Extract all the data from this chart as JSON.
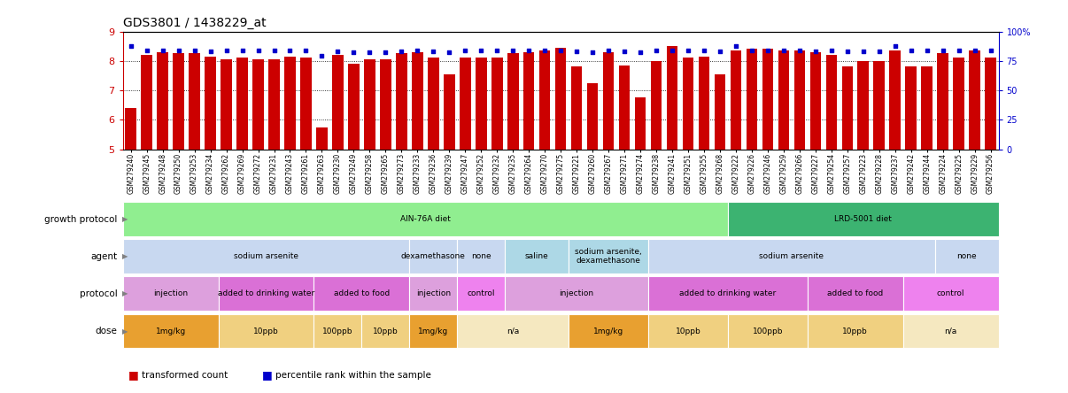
{
  "title": "GDS3801 / 1438229_at",
  "sample_ids": [
    "GSM279240",
    "GSM279245",
    "GSM279248",
    "GSM279250",
    "GSM279253",
    "GSM279234",
    "GSM279262",
    "GSM279269",
    "GSM279272",
    "GSM279231",
    "GSM279243",
    "GSM279261",
    "GSM279263",
    "GSM279230",
    "GSM279249",
    "GSM279258",
    "GSM279265",
    "GSM279273",
    "GSM279233",
    "GSM279236",
    "GSM279239",
    "GSM279247",
    "GSM279252",
    "GSM279232",
    "GSM279235",
    "GSM279264",
    "GSM279270",
    "GSM279275",
    "GSM279221",
    "GSM279260",
    "GSM279267",
    "GSM279271",
    "GSM279274",
    "GSM279238",
    "GSM279241",
    "GSM279251",
    "GSM279255",
    "GSM279268",
    "GSM279222",
    "GSM279226",
    "GSM279246",
    "GSM279259",
    "GSM279266",
    "GSM279227",
    "GSM279254",
    "GSM279257",
    "GSM279223",
    "GSM279228",
    "GSM279237",
    "GSM279242",
    "GSM279244",
    "GSM279224",
    "GSM279225",
    "GSM279229",
    "GSM279256"
  ],
  "bar_values": [
    6.4,
    8.2,
    8.3,
    8.25,
    8.25,
    8.15,
    8.05,
    8.1,
    8.05,
    8.05,
    8.15,
    8.1,
    5.75,
    8.2,
    7.9,
    8.05,
    8.05,
    8.25,
    8.3,
    8.1,
    7.55,
    8.1,
    8.1,
    8.1,
    8.25,
    8.3,
    8.35,
    8.45,
    7.8,
    7.25,
    8.3,
    7.85,
    6.75,
    8.0,
    8.5,
    8.1,
    8.15,
    7.55,
    8.35,
    8.4,
    8.4,
    8.35,
    8.35,
    8.3,
    8.2,
    7.8,
    8.0,
    8.0,
    8.35,
    7.8,
    7.8,
    8.25,
    8.1,
    8.35,
    8.1
  ],
  "percentile_values": [
    88,
    84,
    84,
    84,
    84,
    83,
    84,
    84,
    84,
    84,
    84,
    84,
    79,
    83,
    82,
    82,
    82,
    83,
    84,
    83,
    82,
    84,
    84,
    84,
    84,
    84,
    84,
    84,
    83,
    82,
    84,
    83,
    82,
    84,
    84,
    84,
    84,
    83,
    88,
    84,
    84,
    84,
    84,
    83,
    84,
    83,
    83,
    83,
    88,
    84,
    84,
    84,
    84,
    84,
    84
  ],
  "ylim": [
    5,
    9
  ],
  "yticks": [
    5,
    6,
    7,
    8,
    9
  ],
  "bar_color": "#CC0000",
  "percentile_color": "#0000CC",
  "groups": [
    {
      "label": "growth protocol",
      "rows": [
        {
          "text": "AIN-76A diet",
          "color": "#90EE90",
          "start": 0,
          "end": 38
        },
        {
          "text": "LRD-5001 diet",
          "color": "#3CB371",
          "start": 38,
          "end": 55
        }
      ]
    },
    {
      "label": "agent",
      "rows": [
        {
          "text": "sodium arsenite",
          "color": "#C8D8F0",
          "start": 0,
          "end": 18
        },
        {
          "text": "dexamethasone",
          "color": "#C8D8F0",
          "start": 18,
          "end": 21
        },
        {
          "text": "none",
          "color": "#C8D8F0",
          "start": 21,
          "end": 24
        },
        {
          "text": "saline",
          "color": "#ADD8E6",
          "start": 24,
          "end": 28
        },
        {
          "text": "sodium arsenite,\ndexamethasone",
          "color": "#ADD8E6",
          "start": 28,
          "end": 33
        },
        {
          "text": "sodium arsenite",
          "color": "#C8D8F0",
          "start": 33,
          "end": 51
        },
        {
          "text": "none",
          "color": "#C8D8F0",
          "start": 51,
          "end": 55
        }
      ]
    },
    {
      "label": "protocol",
      "rows": [
        {
          "text": "injection",
          "color": "#DDA0DD",
          "start": 0,
          "end": 6
        },
        {
          "text": "added to drinking water",
          "color": "#DA70D6",
          "start": 6,
          "end": 12
        },
        {
          "text": "added to food",
          "color": "#DA70D6",
          "start": 12,
          "end": 18
        },
        {
          "text": "injection",
          "color": "#DDA0DD",
          "start": 18,
          "end": 21
        },
        {
          "text": "control",
          "color": "#EE82EE",
          "start": 21,
          "end": 24
        },
        {
          "text": "injection",
          "color": "#DDA0DD",
          "start": 24,
          "end": 33
        },
        {
          "text": "added to drinking water",
          "color": "#DA70D6",
          "start": 33,
          "end": 43
        },
        {
          "text": "added to food",
          "color": "#DA70D6",
          "start": 43,
          "end": 49
        },
        {
          "text": "control",
          "color": "#EE82EE",
          "start": 49,
          "end": 55
        }
      ]
    },
    {
      "label": "dose",
      "rows": [
        {
          "text": "1mg/kg",
          "color": "#E8A030",
          "start": 0,
          "end": 6
        },
        {
          "text": "10ppb",
          "color": "#F0D080",
          "start": 6,
          "end": 12
        },
        {
          "text": "100ppb",
          "color": "#F0D080",
          "start": 12,
          "end": 15
        },
        {
          "text": "10ppb",
          "color": "#F0D080",
          "start": 15,
          "end": 18
        },
        {
          "text": "1mg/kg",
          "color": "#E8A030",
          "start": 18,
          "end": 21
        },
        {
          "text": "n/a",
          "color": "#F5E8C0",
          "start": 21,
          "end": 28
        },
        {
          "text": "1mg/kg",
          "color": "#E8A030",
          "start": 28,
          "end": 33
        },
        {
          "text": "10ppb",
          "color": "#F0D080",
          "start": 33,
          "end": 38
        },
        {
          "text": "100ppb",
          "color": "#F0D080",
          "start": 38,
          "end": 43
        },
        {
          "text": "10ppb",
          "color": "#F0D080",
          "start": 43,
          "end": 49
        },
        {
          "text": "n/a",
          "color": "#F5E8C0",
          "start": 49,
          "end": 55
        }
      ]
    }
  ],
  "legend": [
    {
      "color": "#CC0000",
      "label": "transformed count"
    },
    {
      "color": "#0000CC",
      "label": "percentile rank within the sample"
    }
  ]
}
